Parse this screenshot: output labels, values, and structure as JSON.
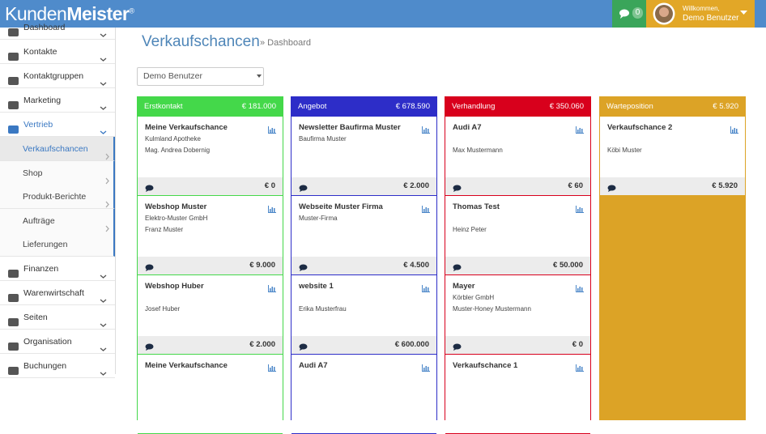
{
  "header": {
    "logo_a": "Kunden",
    "logo_b": "Meister",
    "reg": "®",
    "chat_count": "0",
    "welcome": "Willkommen,",
    "user": "Demo Benutzer"
  },
  "sidebar": {
    "items": [
      {
        "label": "Dashboard"
      },
      {
        "label": "Kontakte"
      },
      {
        "label": "Kontaktgruppen"
      },
      {
        "label": "Marketing"
      },
      {
        "label": "Vertrieb",
        "active": true,
        "sub": [
          "Verkaufschancen",
          "Shop",
          "Produkt-Berichte",
          "Aufträge",
          "Lieferungen"
        ]
      },
      {
        "label": "Finanzen"
      },
      {
        "label": "Warenwirtschaft"
      },
      {
        "label": "Seiten"
      },
      {
        "label": "Organisation"
      },
      {
        "label": "Buchungen"
      }
    ]
  },
  "page": {
    "title": "Verkaufschancen",
    "breadcrumb": "» Dashboard",
    "filter": "Demo Benutzer"
  },
  "columns": [
    {
      "name": "Erstkontakt",
      "total": "€ 181.000",
      "color": "#44d84a",
      "cards": [
        {
          "title": "Meine Verkaufschance",
          "line1": "Kulmland Apotheke",
          "line2": "Mag. Andrea Dobernig",
          "amount": "€ 0"
        },
        {
          "title": "Webshop Muster",
          "line1": "Elektro-Muster GmbH",
          "line2": "Franz Muster",
          "amount": "€ 9.000"
        },
        {
          "title": "Webshop Huber",
          "line2": "Josef Huber",
          "amount": "€ 2.000"
        },
        {
          "title": "Meine Verkaufschance"
        }
      ]
    },
    {
      "name": "Angebot",
      "total": "€ 678.590",
      "color": "#2d2dc8",
      "cards": [
        {
          "title": "Newsletter Baufirma Muster",
          "line1": "Baufirma Muster",
          "amount": "€ 2.000"
        },
        {
          "title": "Webseite Muster Firma",
          "line1": "Muster-Firma",
          "amount": "€ 4.500"
        },
        {
          "title": "website 1",
          "line2": "Erika Musterfrau",
          "amount": "€ 600.000"
        },
        {
          "title": "Audi A7"
        }
      ]
    },
    {
      "name": "Verhandlung",
      "total": "€ 350.060",
      "color": "#d8001c",
      "cards": [
        {
          "title": "Audi A7",
          "line2": "Max Mustermann",
          "amount": "€ 60"
        },
        {
          "title": "Thomas Test",
          "line2": "Heinz Peter",
          "amount": "€ 50.000"
        },
        {
          "title": "Mayer",
          "line1": "Körbler GmbH",
          "line2": "Muster-Honey Mustermann",
          "amount": "€ 0"
        },
        {
          "title": "Verkaufschance 1"
        }
      ]
    },
    {
      "name": "Warteposition",
      "total": "€ 5.920",
      "color": "#dca326",
      "fill": true,
      "cards": [
        {
          "title": "Verkaufschance 2",
          "line2": "Köbi Muster",
          "amount": "€ 5.920"
        }
      ]
    }
  ]
}
